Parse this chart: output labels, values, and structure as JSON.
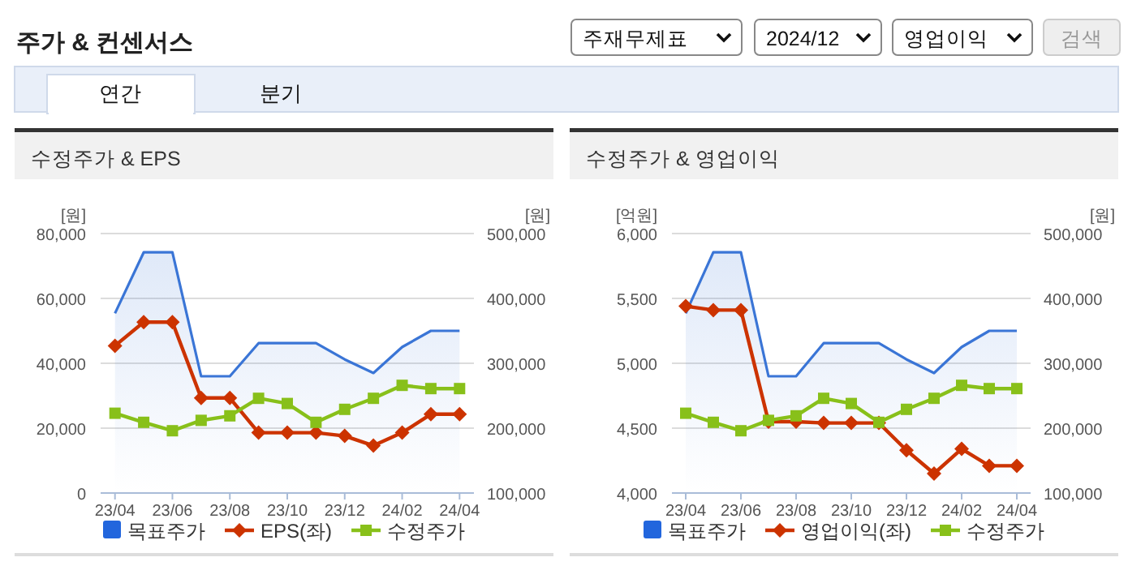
{
  "chart_data": [
    {
      "type": "other",
      "title": "주가 & 컨센서스",
      "annotations": [
        "주재무제표",
        "2024/12",
        "영업이익",
        "검색",
        "연간",
        "분기"
      ]
    },
    {
      "type": "line",
      "title": "수정주가 & EPS",
      "x": [
        "2023-04",
        "2023-05",
        "2023-06",
        "2023-07",
        "2023-08",
        "2023-09",
        "2023-10",
        "2023-11",
        "2023-12",
        "2024-01",
        "2024-02",
        "2024-03",
        "2024-04"
      ],
      "xlim": [
        "2023-03-16",
        "2024-04-16"
      ],
      "xticks": [
        {
          "value": "2023-04",
          "label": "23/04"
        },
        {
          "value": "2023-06",
          "label": "23/06"
        },
        {
          "value": "2023-08",
          "label": "23/08"
        },
        {
          "value": "2023-10",
          "label": "23/10"
        },
        {
          "value": "2023-12",
          "label": "23/12"
        },
        {
          "value": "2024-02",
          "label": "24/02"
        },
        {
          "value": "2024-04",
          "label": "24/04"
        }
      ],
      "ylabel": "[원]",
      "y2label": "[원]",
      "ylim": [
        0,
        80000
      ],
      "yticks": [
        {
          "value": 0,
          "label": "0"
        },
        {
          "value": 20000,
          "label": "20,000"
        },
        {
          "value": 40000,
          "label": "40,000"
        },
        {
          "value": 60000,
          "label": "60,000"
        },
        {
          "value": 80000,
          "label": "80,000"
        }
      ],
      "y2lim": [
        100000,
        500000
      ],
      "y2ticks": [
        {
          "value": 100000,
          "label": "100,000"
        },
        {
          "value": 200000,
          "label": "200,000"
        },
        {
          "value": 300000,
          "label": "300,000"
        },
        {
          "value": 400000,
          "label": "400,000"
        },
        {
          "value": 500000,
          "label": "500,000"
        }
      ],
      "grid": "y",
      "legend": "bottom",
      "series": [
        {
          "name": "목표주가",
          "type": "area",
          "color": "#3a75d6",
          "axis": "y2",
          "values": [
            377000,
            471000,
            471000,
            280000,
            280000,
            331000,
            331000,
            331000,
            306000,
            285000,
            325000,
            350000,
            350000
          ]
        },
        {
          "name": "EPS(좌)",
          "type": "line",
          "color": "#cc3300",
          "marker": "diamond",
          "values": [
            45400,
            52700,
            52700,
            29300,
            29300,
            18600,
            18600,
            18600,
            17600,
            14600,
            18600,
            24300,
            24300
          ]
        },
        {
          "name": "수정주가",
          "type": "line",
          "color": "#88c01a",
          "marker": "square",
          "axis": "y2",
          "values": [
            223000,
            209000,
            196000,
            212000,
            219000,
            246000,
            238000,
            209000,
            229000,
            246000,
            266000,
            261000,
            261000
          ]
        }
      ]
    },
    {
      "type": "line",
      "title": "수정주가 & 영업이익",
      "x": [
        "2023-04",
        "2023-05",
        "2023-06",
        "2023-07",
        "2023-08",
        "2023-09",
        "2023-10",
        "2023-11",
        "2023-12",
        "2024-01",
        "2024-02",
        "2024-03",
        "2024-04"
      ],
      "xlim": [
        "2023-03-16",
        "2024-04-16"
      ],
      "xticks": [
        {
          "value": "2023-04",
          "label": "23/04"
        },
        {
          "value": "2023-06",
          "label": "23/06"
        },
        {
          "value": "2023-08",
          "label": "23/08"
        },
        {
          "value": "2023-10",
          "label": "23/10"
        },
        {
          "value": "2023-12",
          "label": "23/12"
        },
        {
          "value": "2024-02",
          "label": "24/02"
        },
        {
          "value": "2024-04",
          "label": "24/04"
        }
      ],
      "ylabel": "[억원]",
      "y2label": "[원]",
      "ylim": [
        4000,
        6000
      ],
      "yticks": [
        {
          "value": 4000,
          "label": "4,000"
        },
        {
          "value": 4500,
          "label": "4,500"
        },
        {
          "value": 5000,
          "label": "5,000"
        },
        {
          "value": 5500,
          "label": "5,500"
        },
        {
          "value": 6000,
          "label": "6,000"
        }
      ],
      "y2lim": [
        100000,
        500000
      ],
      "y2ticks": [
        {
          "value": 100000,
          "label": "100,000"
        },
        {
          "value": 200000,
          "label": "200,000"
        },
        {
          "value": 300000,
          "label": "300,000"
        },
        {
          "value": 400000,
          "label": "400,000"
        },
        {
          "value": 500000,
          "label": "500,000"
        }
      ],
      "grid": "y",
      "legend": "bottom",
      "series": [
        {
          "name": "목표주가",
          "type": "area",
          "color": "#3a75d6",
          "axis": "y2",
          "values": [
            377000,
            471000,
            471000,
            280000,
            280000,
            331000,
            331000,
            331000,
            306000,
            285000,
            325000,
            350000,
            350000
          ]
        },
        {
          "name": "영업이익(좌)",
          "type": "line",
          "color": "#cc3300",
          "marker": "diamond",
          "values": [
            5440,
            5410,
            5410,
            4550,
            4550,
            4540,
            4540,
            4540,
            4330,
            4150,
            4340,
            4210,
            4210
          ]
        },
        {
          "name": "수정주가",
          "type": "line",
          "color": "#88c01a",
          "marker": "square",
          "axis": "y2",
          "values": [
            223000,
            209000,
            196000,
            212000,
            219000,
            246000,
            238000,
            209000,
            229000,
            246000,
            266000,
            261000,
            261000
          ]
        }
      ]
    }
  ]
}
